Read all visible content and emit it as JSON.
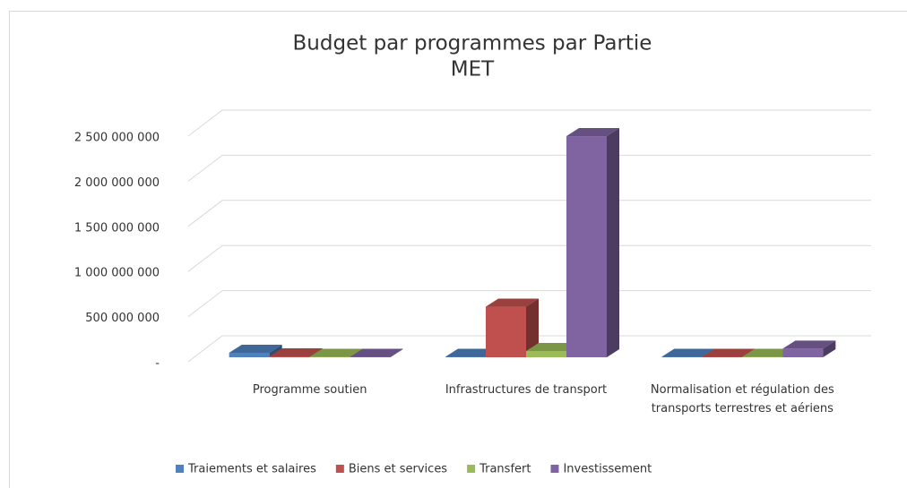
{
  "chart_data": {
    "type": "bar3d",
    "title": [
      "Budget par programmes par Partie",
      "MET"
    ],
    "categories": [
      "Programme soutien",
      "Infrastructures de transport",
      "Normalisation et régulation des transports terrestres et aériens"
    ],
    "series": [
      {
        "name": "Traiements et salaires",
        "color": "#4f81bd",
        "values": [
          50000000,
          5000000,
          5000000
        ]
      },
      {
        "name": "Biens et services",
        "color": "#c0504d",
        "values": [
          10000000,
          560000000,
          5000000
        ]
      },
      {
        "name": "Transfert",
        "color": "#9bbb59",
        "values": [
          5000000,
          70000000,
          5000000
        ]
      },
      {
        "name": "Investissement",
        "color": "#8064a2",
        "values": [
          5000000,
          2450000000,
          95000000
        ]
      }
    ],
    "ylim": [
      0,
      2500000000
    ],
    "yticks": [
      {
        "value": 0,
        "label": "-"
      },
      {
        "value": 500000000,
        "label": "500 000 000"
      },
      {
        "value": 1000000000,
        "label": "1 000 000 000"
      },
      {
        "value": 1500000000,
        "label": "1 500 000 000"
      },
      {
        "value": 2000000000,
        "label": "2 000 000 000"
      },
      {
        "value": 2500000000,
        "label": "2 500 000 000"
      }
    ],
    "grid": true,
    "legend": "bottom"
  }
}
